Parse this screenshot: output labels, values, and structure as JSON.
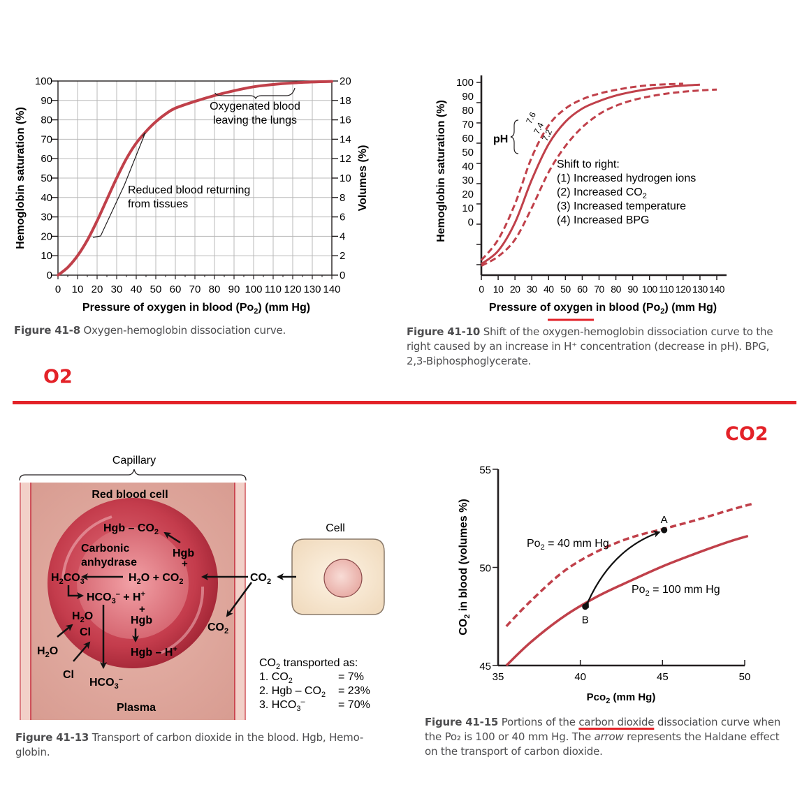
{
  "colors": {
    "curve": "#c0404a",
    "accent_red": "#e32228",
    "text": "#231f20",
    "caption": "#4d4d4f"
  },
  "section_labels": {
    "o2": "O2",
    "co2": "CO2"
  },
  "fig41_8": {
    "caption_number": "Figure 41-8",
    "caption_text": "Oxygen-hemoglobin dissociation curve.",
    "chart_data": {
      "type": "line",
      "title": "",
      "xlabel": "Pressure of oxygen in blood (Po₂) (mm Hg)",
      "ylabel": "Hemoglobin saturation (%)",
      "y2label": "Volumes (%)",
      "xlim": [
        0,
        140
      ],
      "ylim": [
        0,
        100
      ],
      "y2lim": [
        0,
        20
      ],
      "xticks": [
        0,
        10,
        20,
        30,
        40,
        50,
        60,
        70,
        80,
        90,
        100,
        110,
        120,
        130,
        140
      ],
      "yticks": [
        0,
        10,
        20,
        30,
        40,
        50,
        60,
        70,
        80,
        90,
        100
      ],
      "y2ticks": [
        0,
        2,
        4,
        6,
        8,
        10,
        12,
        14,
        16,
        18,
        20
      ],
      "grid": true,
      "series": [
        {
          "x": [
            0,
            5,
            10,
            15,
            20,
            25,
            30,
            35,
            40,
            45,
            50,
            55,
            60,
            70,
            80,
            90,
            100,
            110,
            120,
            130,
            140
          ],
          "y": [
            0,
            4,
            10,
            18,
            28,
            39,
            50,
            60,
            68,
            74,
            79,
            83,
            86,
            89.5,
            92.5,
            95,
            97,
            98.2,
            99,
            99.5,
            99.8
          ]
        }
      ],
      "annotations": [
        {
          "text": "Oxygenated blood leaving the lungs",
          "x_range": [
            80,
            140
          ]
        },
        {
          "text": "Reduced blood returning from tissues",
          "y_range": [
            20,
            73
          ]
        }
      ]
    }
  },
  "fig41_10": {
    "caption_number": "Figure 41-10",
    "caption_text": "Shift of the oxygen-hemoglobin dissociation curve to the right caused by an increase in H⁺ concentration (decrease in pH). BPG, 2,3-Biphosphoglycerate.",
    "chart_data": {
      "type": "line",
      "title": "",
      "xlabel": "Pressure of oxygen in blood (Po₂) (mm Hg)",
      "ylabel": "Hemoglobin saturation (%)",
      "xlim": [
        0,
        140
      ],
      "ylim": [
        0,
        100
      ],
      "xticks": [
        0,
        10,
        20,
        30,
        40,
        50,
        60,
        70,
        80,
        90,
        100,
        110,
        120,
        130,
        140
      ],
      "yticks": [
        0,
        10,
        20,
        30,
        40,
        50,
        60,
        70,
        80,
        90,
        100
      ],
      "grid": false,
      "ph_label": "pH",
      "series": [
        {
          "name": "7.6",
          "style": "dashed",
          "x": [
            0,
            10,
            20,
            30,
            40,
            50,
            60,
            70,
            80,
            90,
            100,
            110,
            120
          ],
          "y": [
            5,
            16,
            35,
            60,
            77,
            86,
            91,
            94,
            96,
            97.5,
            98.5,
            99,
            99.3
          ]
        },
        {
          "name": "7.4",
          "style": "solid",
          "x": [
            0,
            10,
            20,
            30,
            40,
            50,
            60,
            70,
            80,
            90,
            100,
            110,
            120,
            130
          ],
          "y": [
            3,
            10,
            25,
            48,
            67,
            79,
            86,
            90,
            93,
            95,
            96.5,
            97.5,
            98.3,
            98.8
          ]
        },
        {
          "name": "7.2",
          "style": "dashed",
          "x": [
            0,
            10,
            20,
            30,
            40,
            50,
            60,
            70,
            80,
            90,
            100,
            110,
            120,
            130,
            140
          ],
          "y": [
            2,
            7,
            16,
            33,
            52,
            66,
            76,
            83,
            87.5,
            90.5,
            92.5,
            94,
            95,
            95.7,
            96.2
          ]
        }
      ],
      "annotation_lines": [
        "Shift to right:",
        "(1) Increased hydrogen ions",
        "(2) Increased CO₂",
        "(3) Increased temperature",
        "(4) Increased BPG"
      ]
    }
  },
  "fig41_13": {
    "caption_number": "Figure 41-13",
    "caption_line1": "Transport of carbon dioxide in the blood. Hgb, Hemo-",
    "caption_line2": "globin.",
    "labels": {
      "capillary": "Capillary",
      "red_blood_cell": "Red blood cell",
      "hgb_co2": "Hgb – CO₂",
      "carbonic": "Carbonic",
      "anhydrase": "anhydrase",
      "hgb_right": "Hgb",
      "plus_right": "+",
      "h2co3": "H₂CO₃",
      "h2o_plus_co2": "H₂O  +  CO₂",
      "hco3_plus_h": "HCO₃⁻ + H⁺",
      "h2o_inner": "H₂O",
      "cl_inner": "Cl",
      "plus_mid": "+",
      "hgb_mid": "Hgb",
      "hgb_h": "Hgb – H⁺",
      "h2o_outer": "H₂O",
      "cl_outer": "Cl",
      "hco3_outer": "HCO₃⁻",
      "plasma": "Plasma",
      "co2_plasma": "CO₂",
      "co2_mid": "CO₂",
      "co2_cell": "CO₂",
      "cell": "Cell",
      "transported_title": "CO₂ transported as:",
      "transported": [
        {
          "item": "1. CO₂",
          "value": "=   7%"
        },
        {
          "item": "2. Hgb – CO₂",
          "value": "=  23%"
        },
        {
          "item": "3. HCO₃⁻",
          "value": "=  70%"
        }
      ]
    }
  },
  "fig41_15": {
    "caption_number": "Figure 41-15",
    "caption_line1_a": "Portions of the ",
    "caption_line1_b": "carbon dioxide",
    "caption_line1_c": " dissociation curve when",
    "caption_line2_a": "the Po₂ is 100 or 40 mm Hg. The ",
    "caption_line2_b": "arrow",
    "caption_line2_c": " represents the Haldane effect",
    "caption_line3": "on the transport of carbon dioxide.",
    "chart_data": {
      "type": "line",
      "title": "",
      "xlabel": "Pco₂ (mm Hg)",
      "ylabel": "CO₂ in blood (volumes %)",
      "xlim": [
        35,
        50
      ],
      "ylim": [
        45,
        55
      ],
      "xticks": [
        35,
        40,
        45,
        50
      ],
      "yticks": [
        45,
        50,
        55
      ],
      "grid": false,
      "series": [
        {
          "name": "Po₂ = 40 mm Hg",
          "style": "dashed",
          "x": [
            35.5,
            37,
            39,
            41,
            43,
            45,
            47,
            49,
            50.5
          ],
          "y": [
            47.0,
            48.3,
            49.8,
            50.8,
            51.5,
            51.95,
            52.4,
            52.9,
            53.25
          ]
        },
        {
          "name": "Po₂ = 100 mm Hg",
          "style": "solid",
          "x": [
            35.5,
            37,
            39,
            41,
            43,
            45,
            47,
            49,
            50.2
          ],
          "y": [
            45.0,
            46.2,
            47.5,
            48.5,
            49.3,
            50.05,
            50.7,
            51.3,
            51.6
          ]
        }
      ],
      "points": [
        {
          "label": "A",
          "x": 45.1,
          "y": 51.9
        },
        {
          "label": "B",
          "x": 40.3,
          "y": 48.0
        }
      ]
    }
  }
}
